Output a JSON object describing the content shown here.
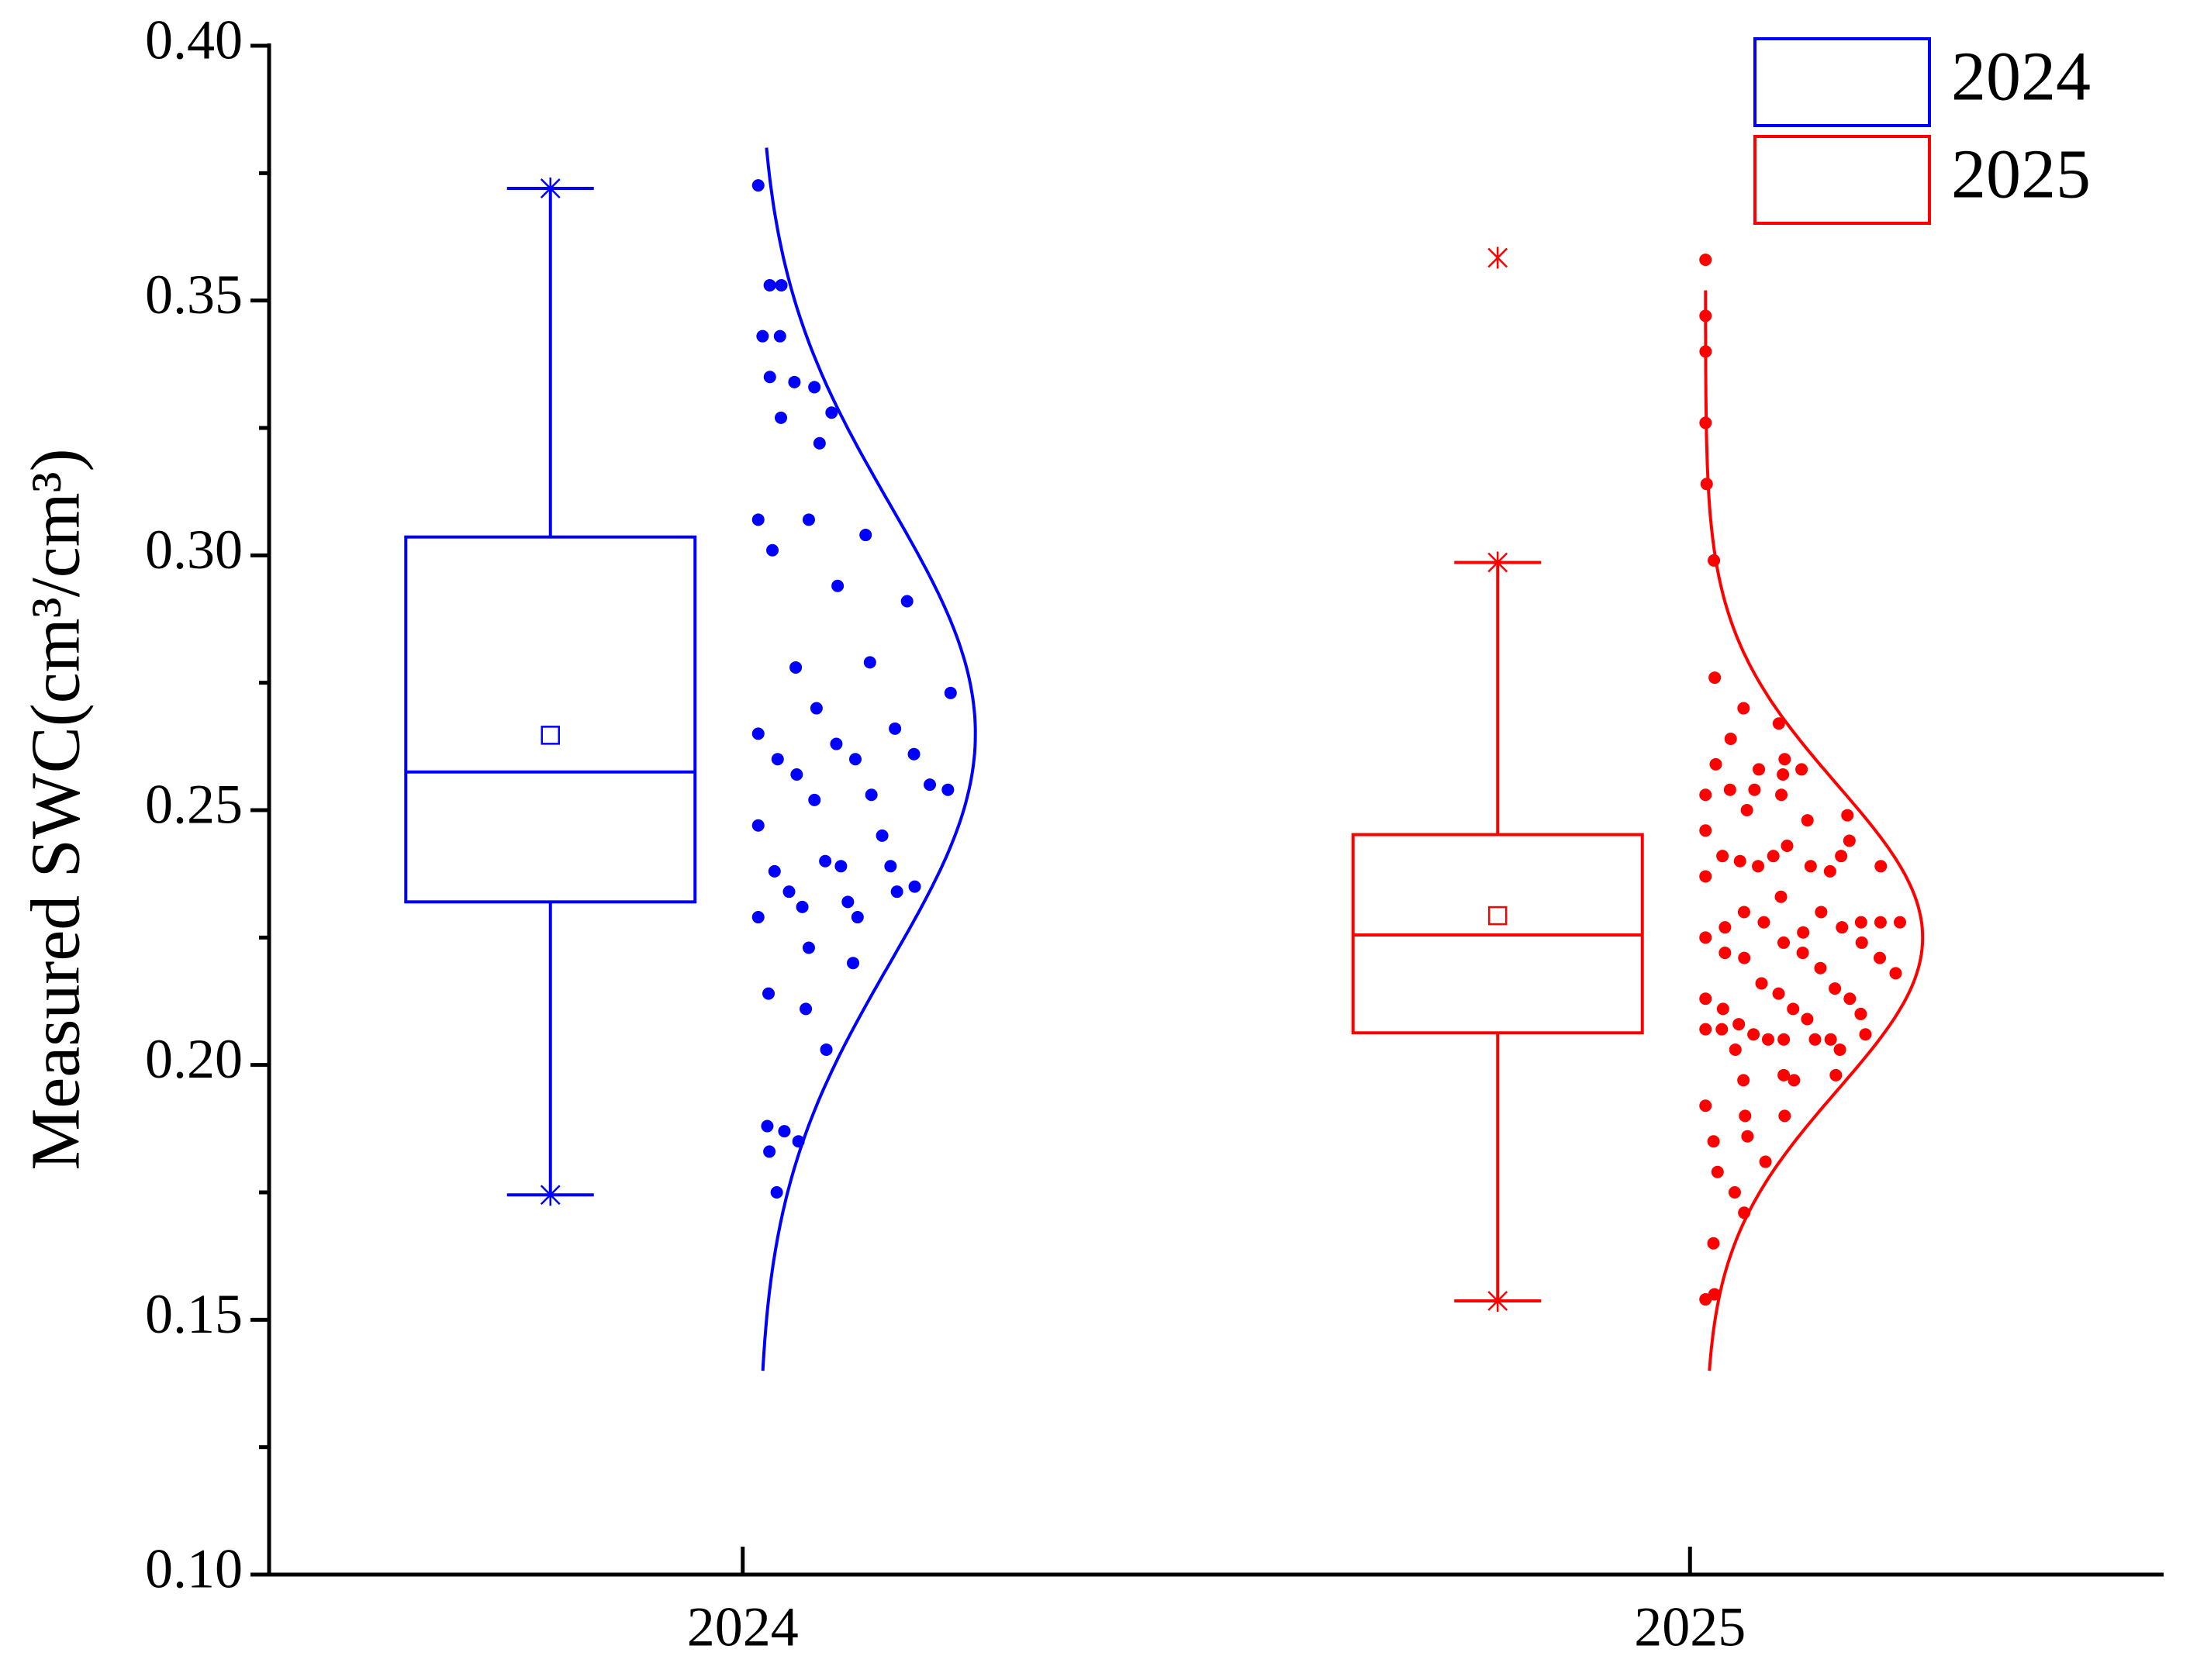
{
  "chart_data": {
    "type": "box",
    "y_label": "Measured SWC(cm³/cm³)",
    "ylim": [
      0.1,
      0.4
    ],
    "yticks": [
      {
        "value": 0.1,
        "label": "0.10"
      },
      {
        "value": 0.15,
        "label": "0.15"
      },
      {
        "value": 0.2,
        "label": "0.20"
      },
      {
        "value": 0.25,
        "label": "0.25"
      },
      {
        "value": 0.3,
        "label": "0.30"
      },
      {
        "value": 0.35,
        "label": "0.35"
      },
      {
        "value": 0.4,
        "label": "0.40"
      }
    ],
    "categories": [
      "2024",
      "2025"
    ],
    "legend": "top-right",
    "series": [
      {
        "name": "2024",
        "color": "#0000ff",
        "box": {
          "min": 0.1745,
          "q1": 0.232,
          "median": 0.2575,
          "q3": 0.3036,
          "max": 0.372,
          "mean": 0.2647
        },
        "outliers": [],
        "points": [
          0.3726,
          0.353,
          0.353,
          0.343,
          0.343,
          0.333,
          0.335,
          0.334,
          0.328,
          0.327,
          0.322,
          0.307,
          0.307,
          0.304,
          0.301,
          0.294,
          0.291,
          0.278,
          0.279,
          0.273,
          0.27,
          0.266,
          0.265,
          0.263,
          0.261,
          0.26,
          0.26,
          0.255,
          0.257,
          0.253,
          0.254,
          0.252,
          0.245,
          0.247,
          0.24,
          0.239,
          0.238,
          0.239,
          0.234,
          0.234,
          0.232,
          0.235,
          0.231,
          0.229,
          0.229,
          0.223,
          0.22,
          0.214,
          0.211,
          0.203,
          0.188,
          0.187,
          0.185,
          0.183,
          0.175
        ],
        "curve": {
          "mean": 0.265,
          "sd": 0.045,
          "range": [
            0.14,
            0.38
          ]
        }
      },
      {
        "name": "2025",
        "color": "#ff0000",
        "box": {
          "min": 0.1537,
          "q1": 0.2063,
          "median": 0.2255,
          "q3": 0.2452,
          "max": 0.2986,
          "mean": 0.2293
        },
        "outliers": [
          0.3584
        ],
        "points": [
          0.358,
          0.347,
          0.34,
          0.326,
          0.314,
          0.299,
          0.276,
          0.27,
          0.267,
          0.264,
          0.257,
          0.253,
          0.254,
          0.26,
          0.259,
          0.258,
          0.258,
          0.254,
          0.253,
          0.249,
          0.25,
          0.248,
          0.246,
          0.241,
          0.241,
          0.241,
          0.243,
          0.244,
          0.24,
          0.239,
          0.239,
          0.239,
          0.238,
          0.237,
          0.233,
          0.228,
          0.227,
          0.226,
          0.228,
          0.23,
          0.23,
          0.228,
          0.228,
          0.227,
          0.225,
          0.224,
          0.224,
          0.222,
          0.222,
          0.221,
          0.221,
          0.219,
          0.218,
          0.216,
          0.215,
          0.213,
          0.214,
          0.213,
          0.211,
          0.211,
          0.21,
          0.208,
          0.209,
          0.206,
          0.206,
          0.205,
          0.207,
          0.205,
          0.205,
          0.207,
          0.205,
          0.203,
          0.203,
          0.198,
          0.198,
          0.197,
          0.197,
          0.192,
          0.19,
          0.19,
          0.185,
          0.186,
          0.181,
          0.179,
          0.175,
          0.171,
          0.165,
          0.155,
          0.154
        ],
        "curve": {
          "mean": 0.225,
          "sd": 0.03,
          "range": [
            0.14,
            0.352
          ]
        }
      }
    ]
  }
}
